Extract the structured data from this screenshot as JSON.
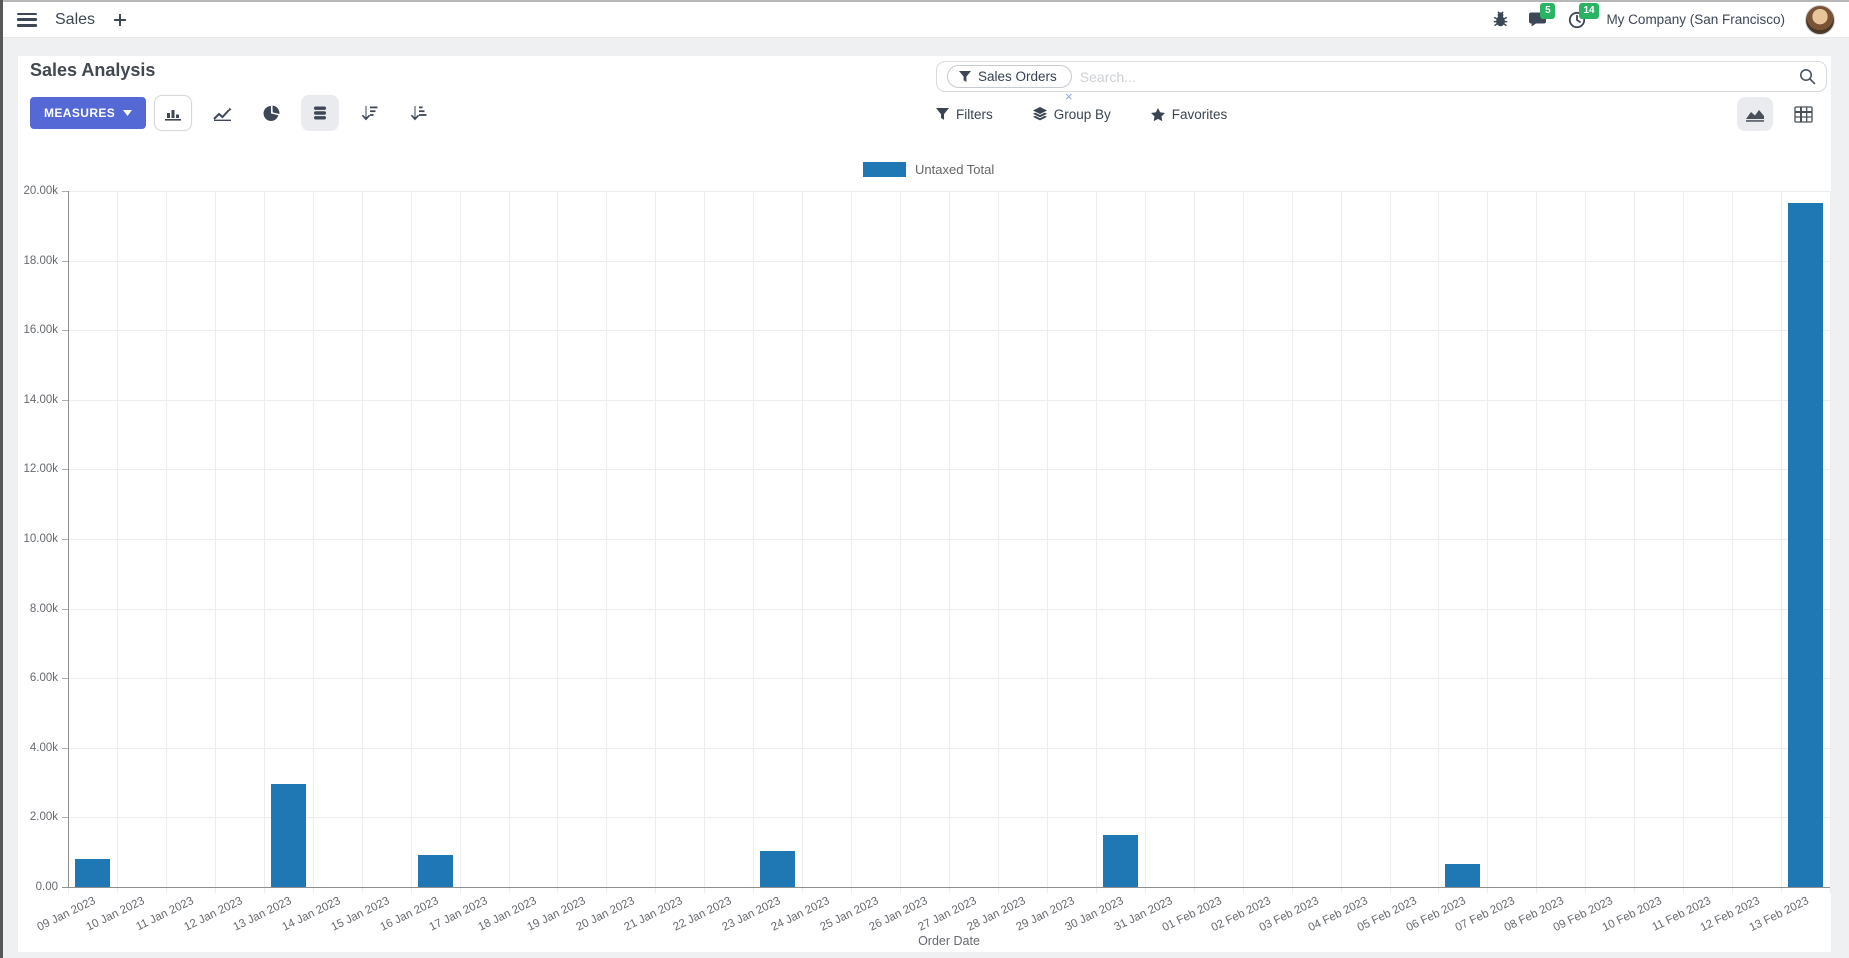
{
  "navbar": {
    "app_name": "Sales",
    "messages_badge": "5",
    "activities_badge": "14",
    "company": "My Company (San Francisco)"
  },
  "control_panel": {
    "title": "Sales Analysis",
    "measures_label": "MEASURES",
    "search": {
      "facet": "Sales Orders",
      "placeholder": "Search...",
      "remove_label": "×"
    },
    "filters_label": "Filters",
    "group_by_label": "Group By",
    "favorites_label": "Favorites"
  },
  "chart_data": {
    "type": "bar",
    "title": "",
    "legend": [
      "Untaxed Total"
    ],
    "series_color": "#1f77b4",
    "xlabel": "Order Date",
    "ylabel": "",
    "ylim": [
      0,
      20000
    ],
    "grid": true,
    "legend_position": "top-center",
    "yticks": [
      "0.00",
      "2.00k",
      "4.00k",
      "6.00k",
      "8.00k",
      "10.00k",
      "12.00k",
      "14.00k",
      "16.00k",
      "18.00k",
      "20.00k"
    ],
    "categories": [
      "09 Jan 2023",
      "10 Jan 2023",
      "11 Jan 2023",
      "12 Jan 2023",
      "13 Jan 2023",
      "14 Jan 2023",
      "15 Jan 2023",
      "16 Jan 2023",
      "17 Jan 2023",
      "18 Jan 2023",
      "19 Jan 2023",
      "20 Jan 2023",
      "21 Jan 2023",
      "22 Jan 2023",
      "23 Jan 2023",
      "24 Jan 2023",
      "25 Jan 2023",
      "26 Jan 2023",
      "27 Jan 2023",
      "28 Jan 2023",
      "29 Jan 2023",
      "30 Jan 2023",
      "31 Jan 2023",
      "01 Feb 2023",
      "02 Feb 2023",
      "03 Feb 2023",
      "04 Feb 2023",
      "05 Feb 2023",
      "06 Feb 2023",
      "07 Feb 2023",
      "08 Feb 2023",
      "09 Feb 2023",
      "10 Feb 2023",
      "11 Feb 2023",
      "12 Feb 2023",
      "13 Feb 2023"
    ],
    "values": [
      810,
      0,
      0,
      0,
      2950,
      0,
      0,
      930,
      0,
      0,
      0,
      0,
      0,
      0,
      1040,
      0,
      0,
      0,
      0,
      0,
      0,
      1490,
      0,
      0,
      0,
      0,
      0,
      0,
      660,
      0,
      0,
      0,
      0,
      0,
      0,
      19650
    ]
  }
}
